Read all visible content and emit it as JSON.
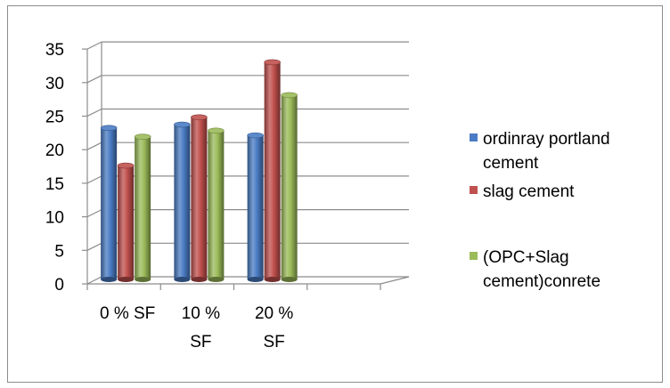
{
  "chart_data": {
    "type": "bar",
    "title": "",
    "xlabel": "",
    "ylabel": "",
    "categories": [
      [
        "0 % SF"
      ],
      [
        "10 %",
        "SF"
      ],
      [
        "20 %",
        "SF"
      ]
    ],
    "category_count_slots": 4,
    "series": [
      {
        "name": [
          "ordinray portland",
          "cement"
        ],
        "values": [
          22.7,
          23.2,
          21.6
        ],
        "color": "#4a7cc4"
      },
      {
        "name": [
          "slag cement"
        ],
        "values": [
          17.1,
          24.3,
          32.5
        ],
        "color": "#c0504d"
      },
      {
        "name": [
          "(OPC+Slag",
          "cement)conrete"
        ],
        "values": [
          21.4,
          22.3,
          27.6
        ],
        "color": "#9bbb59"
      }
    ],
    "yticks": [
      "0",
      "5",
      "10",
      "15",
      "20",
      "25",
      "30",
      "35"
    ],
    "ylim": [
      0,
      35
    ],
    "grid": true,
    "legend": "right",
    "style": "3d-cylinder"
  }
}
